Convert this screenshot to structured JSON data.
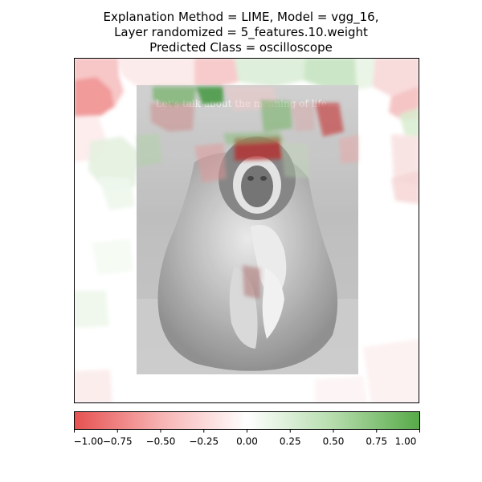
{
  "chart_data": [
    {
      "type": "heatmap",
      "title": "Explanation Method = LIME, Model = vgg_16,\nLayer randomized = 5_features.10.weight\nPredicted Class = oscilloscope",
      "title_lines": [
        "Explanation Method = LIME, Model = vgg_16,",
        "Layer randomized = 5_features.10.weight",
        "Predicted Class = oscilloscope"
      ],
      "explanation_method": "LIME",
      "model": "vgg_16",
      "layer_randomized": "5_features.10.weight",
      "predicted_class": "oscilloscope",
      "xlabel": "",
      "ylabel": "",
      "grid": false,
      "axis_ticks": false,
      "background_image": "grayscale photo of a white-handed gibbon sitting on ground",
      "background_image_caption": "Let's talk about the meaning of life....",
      "colormap": {
        "negative": "#d62728",
        "zero": "#ffffff",
        "positive": "#2ca02c"
      }
    },
    {
      "type": "colorbar",
      "orientation": "horizontal",
      "vmin": -1.0,
      "vmax": 1.0,
      "tick_values": [
        -1.0,
        -0.75,
        -0.5,
        -0.25,
        0.0,
        0.25,
        0.5,
        0.75,
        1.0
      ],
      "tick_labels": [
        "−1.00",
        "−0.75",
        "−0.50",
        "−0.25",
        "0.00",
        "0.25",
        "0.50",
        "0.75",
        "1.00"
      ]
    }
  ]
}
